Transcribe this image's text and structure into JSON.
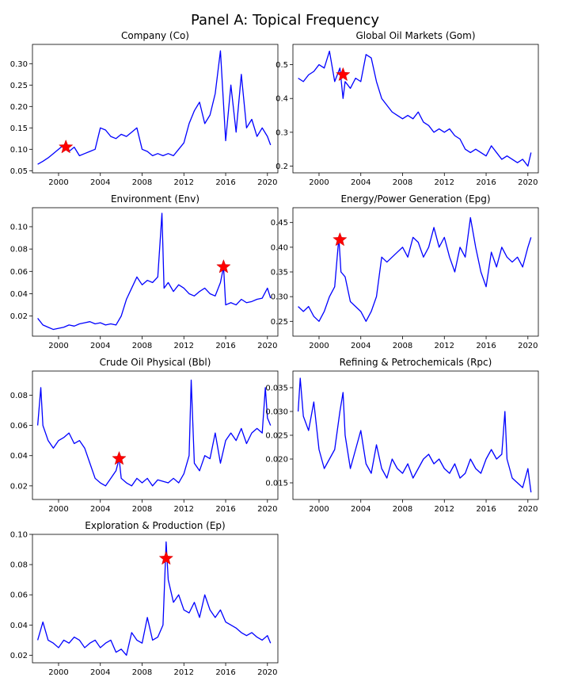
{
  "figure": {
    "title": "Panel A: Topical Frequency"
  },
  "style": {
    "line_color": "#0000ff",
    "marker_color": "#ff0000"
  },
  "chart_data": [
    {
      "type": "line",
      "title": "Company (Co)",
      "xlim": [
        1997.5,
        2021.0
      ],
      "ylim": [
        0.045,
        0.345
      ],
      "xticks": [
        2000,
        2004,
        2008,
        2012,
        2016,
        2020
      ],
      "yticks": [
        0.05,
        0.1,
        0.15,
        0.2,
        0.25,
        0.3
      ],
      "ytick_labels": [
        "0.05",
        "0.10",
        "0.15",
        "0.20",
        "0.25",
        "0.30"
      ],
      "series": [
        {
          "x": [
            1998.0,
            1998.5,
            1999.0,
            1999.5,
            2000.0,
            2000.5,
            2001.0,
            2001.5,
            2002.0,
            2002.5,
            2003.0,
            2003.5,
            2004.0,
            2004.5,
            2005.0,
            2005.5,
            2006.0,
            2006.5,
            2007.0,
            2007.5,
            2008.0,
            2008.5,
            2009.0,
            2009.5,
            2010.0,
            2010.5,
            2011.0,
            2011.5,
            2012.0,
            2012.5,
            2013.0,
            2013.5,
            2014.0,
            2014.5,
            2015.0,
            2015.5,
            2016.0,
            2016.5,
            2017.0,
            2017.5,
            2018.0,
            2018.5,
            2019.0,
            2019.5,
            2020.0,
            2020.3
          ],
          "y": [
            0.065,
            0.072,
            0.08,
            0.09,
            0.1,
            0.11,
            0.095,
            0.105,
            0.085,
            0.09,
            0.095,
            0.1,
            0.15,
            0.145,
            0.13,
            0.125,
            0.135,
            0.13,
            0.14,
            0.15,
            0.1,
            0.095,
            0.085,
            0.09,
            0.085,
            0.09,
            0.085,
            0.1,
            0.115,
            0.16,
            0.19,
            0.21,
            0.16,
            0.18,
            0.23,
            0.33,
            0.12,
            0.25,
            0.14,
            0.275,
            0.15,
            0.17,
            0.13,
            0.15,
            0.13,
            0.11
          ]
        }
      ],
      "markers": [
        {
          "x": 2000.7,
          "y": 0.105
        }
      ]
    },
    {
      "type": "line",
      "title": "Global Oil Markets (Gom)",
      "xlim": [
        1997.5,
        2021.0
      ],
      "ylim": [
        0.18,
        0.56
      ],
      "xticks": [
        2000,
        2004,
        2008,
        2012,
        2016,
        2020
      ],
      "yticks": [
        0.2,
        0.3,
        0.4,
        0.5
      ],
      "ytick_labels": [
        "0.2",
        "0.3",
        "0.4",
        "0.5"
      ],
      "series": [
        {
          "x": [
            1998.0,
            1998.5,
            1999.0,
            1999.5,
            2000.0,
            2000.5,
            2001.0,
            2001.5,
            2002.0,
            2002.3,
            2002.5,
            2003.0,
            2003.5,
            2004.0,
            2004.5,
            2005.0,
            2005.5,
            2006.0,
            2006.5,
            2007.0,
            2007.5,
            2008.0,
            2008.5,
            2009.0,
            2009.5,
            2010.0,
            2010.5,
            2011.0,
            2011.5,
            2012.0,
            2012.5,
            2013.0,
            2013.5,
            2014.0,
            2014.5,
            2015.0,
            2015.5,
            2016.0,
            2016.5,
            2017.0,
            2017.5,
            2018.0,
            2018.5,
            2019.0,
            2019.5,
            2020.0,
            2020.3
          ],
          "y": [
            0.46,
            0.45,
            0.47,
            0.48,
            0.5,
            0.49,
            0.54,
            0.45,
            0.49,
            0.4,
            0.45,
            0.43,
            0.46,
            0.45,
            0.53,
            0.52,
            0.45,
            0.4,
            0.38,
            0.36,
            0.35,
            0.34,
            0.35,
            0.34,
            0.36,
            0.33,
            0.32,
            0.3,
            0.31,
            0.3,
            0.31,
            0.29,
            0.28,
            0.25,
            0.24,
            0.25,
            0.24,
            0.23,
            0.26,
            0.24,
            0.22,
            0.23,
            0.22,
            0.21,
            0.22,
            0.2,
            0.24
          ]
        }
      ],
      "markers": [
        {
          "x": 2002.3,
          "y": 0.47
        }
      ]
    },
    {
      "type": "line",
      "title": "Environment (Env)",
      "xlim": [
        1997.5,
        2021.0
      ],
      "ylim": [
        0.002,
        0.117
      ],
      "xticks": [
        2000,
        2004,
        2008,
        2012,
        2016,
        2020
      ],
      "yticks": [
        0.02,
        0.04,
        0.06,
        0.08,
        0.1
      ],
      "ytick_labels": [
        "0.02",
        "0.04",
        "0.06",
        "0.08",
        "0.10"
      ],
      "series": [
        {
          "x": [
            1998.0,
            1998.5,
            1999.0,
            1999.5,
            2000.0,
            2000.5,
            2001.0,
            2001.5,
            2002.0,
            2002.5,
            2003.0,
            2003.5,
            2004.0,
            2004.5,
            2005.0,
            2005.5,
            2006.0,
            2006.5,
            2007.0,
            2007.5,
            2008.0,
            2008.5,
            2009.0,
            2009.5,
            2009.9,
            2010.1,
            2010.5,
            2011.0,
            2011.5,
            2012.0,
            2012.5,
            2013.0,
            2013.5,
            2014.0,
            2014.5,
            2015.0,
            2015.5,
            2015.8,
            2016.0,
            2016.5,
            2017.0,
            2017.5,
            2018.0,
            2018.5,
            2019.0,
            2019.5,
            2020.0,
            2020.3
          ],
          "y": [
            0.018,
            0.012,
            0.01,
            0.008,
            0.009,
            0.01,
            0.012,
            0.011,
            0.013,
            0.014,
            0.015,
            0.013,
            0.014,
            0.012,
            0.013,
            0.012,
            0.02,
            0.035,
            0.045,
            0.055,
            0.048,
            0.052,
            0.05,
            0.055,
            0.112,
            0.045,
            0.05,
            0.042,
            0.048,
            0.045,
            0.04,
            0.038,
            0.042,
            0.045,
            0.04,
            0.038,
            0.05,
            0.064,
            0.03,
            0.032,
            0.03,
            0.035,
            0.032,
            0.033,
            0.035,
            0.036,
            0.045,
            0.036
          ]
        }
      ],
      "markers": [
        {
          "x": 2015.8,
          "y": 0.064
        }
      ]
    },
    {
      "type": "line",
      "title": "Energy/Power Generation (Epg)",
      "xlim": [
        1997.5,
        2021.0
      ],
      "ylim": [
        0.22,
        0.48
      ],
      "xticks": [
        2000,
        2004,
        2008,
        2012,
        2016,
        2020
      ],
      "yticks": [
        0.25,
        0.3,
        0.35,
        0.4,
        0.45
      ],
      "ytick_labels": [
        "0.25",
        "0.30",
        "0.35",
        "0.40",
        "0.45"
      ],
      "series": [
        {
          "x": [
            1998.0,
            1998.5,
            1999.0,
            1999.5,
            2000.0,
            2000.5,
            2001.0,
            2001.5,
            2001.9,
            2002.1,
            2002.5,
            2003.0,
            2003.5,
            2004.0,
            2004.5,
            2005.0,
            2005.5,
            2006.0,
            2006.5,
            2007.0,
            2007.5,
            2008.0,
            2008.5,
            2009.0,
            2009.5,
            2010.0,
            2010.5,
            2011.0,
            2011.5,
            2012.0,
            2012.5,
            2013.0,
            2013.5,
            2014.0,
            2014.5,
            2015.0,
            2015.5,
            2016.0,
            2016.5,
            2017.0,
            2017.5,
            2018.0,
            2018.5,
            2019.0,
            2019.5,
            2020.0,
            2020.3
          ],
          "y": [
            0.28,
            0.27,
            0.28,
            0.26,
            0.25,
            0.27,
            0.3,
            0.32,
            0.42,
            0.35,
            0.34,
            0.29,
            0.28,
            0.27,
            0.25,
            0.27,
            0.3,
            0.38,
            0.37,
            0.38,
            0.39,
            0.4,
            0.38,
            0.42,
            0.41,
            0.38,
            0.4,
            0.44,
            0.4,
            0.42,
            0.38,
            0.35,
            0.4,
            0.38,
            0.46,
            0.4,
            0.35,
            0.32,
            0.39,
            0.36,
            0.4,
            0.38,
            0.37,
            0.38,
            0.36,
            0.4,
            0.42
          ]
        }
      ],
      "markers": [
        {
          "x": 2002.0,
          "y": 0.415
        }
      ]
    },
    {
      "type": "line",
      "title": "Crude Oil Physical (Bbl)",
      "xlim": [
        1997.5,
        2021.0
      ],
      "ylim": [
        0.011,
        0.096
      ],
      "xticks": [
        2000,
        2004,
        2008,
        2012,
        2016,
        2020
      ],
      "yticks": [
        0.02,
        0.04,
        0.06,
        0.08
      ],
      "ytick_labels": [
        "0.02",
        "0.04",
        "0.06",
        "0.08"
      ],
      "series": [
        {
          "x": [
            1998.0,
            1998.3,
            1998.5,
            1999.0,
            1999.5,
            2000.0,
            2000.5,
            2001.0,
            2001.5,
            2002.0,
            2002.5,
            2003.0,
            2003.5,
            2004.0,
            2004.5,
            2005.0,
            2005.5,
            2005.8,
            2006.0,
            2006.5,
            2007.0,
            2007.5,
            2008.0,
            2008.5,
            2009.0,
            2009.5,
            2010.0,
            2010.5,
            2011.0,
            2011.5,
            2012.0,
            2012.5,
            2012.7,
            2013.0,
            2013.5,
            2014.0,
            2014.5,
            2015.0,
            2015.5,
            2016.0,
            2016.5,
            2017.0,
            2017.5,
            2018.0,
            2018.5,
            2019.0,
            2019.5,
            2019.8,
            2020.0,
            2020.3
          ],
          "y": [
            0.06,
            0.085,
            0.06,
            0.05,
            0.045,
            0.05,
            0.052,
            0.055,
            0.048,
            0.05,
            0.045,
            0.035,
            0.025,
            0.022,
            0.02,
            0.025,
            0.03,
            0.038,
            0.025,
            0.022,
            0.02,
            0.025,
            0.022,
            0.025,
            0.02,
            0.024,
            0.023,
            0.022,
            0.025,
            0.022,
            0.028,
            0.04,
            0.09,
            0.035,
            0.03,
            0.04,
            0.038,
            0.055,
            0.035,
            0.05,
            0.055,
            0.05,
            0.058,
            0.048,
            0.055,
            0.058,
            0.055,
            0.085,
            0.065,
            0.06
          ]
        }
      ],
      "markers": [
        {
          "x": 2005.8,
          "y": 0.038
        }
      ]
    },
    {
      "type": "line",
      "title": "Refining & Petrochemicals (Rpc)",
      "xlim": [
        1997.5,
        2021.0
      ],
      "ylim": [
        0.0115,
        0.0385
      ],
      "xticks": [
        2000,
        2004,
        2008,
        2012,
        2016,
        2020
      ],
      "yticks": [
        0.015,
        0.02,
        0.025,
        0.03,
        0.035
      ],
      "ytick_labels": [
        "0.015",
        "0.020",
        "0.025",
        "0.030",
        "0.035"
      ],
      "series": [
        {
          "x": [
            1998.0,
            1998.2,
            1998.5,
            1999.0,
            1999.5,
            2000.0,
            2000.5,
            2001.0,
            2001.5,
            2002.0,
            2002.3,
            2002.5,
            2003.0,
            2003.5,
            2004.0,
            2004.5,
            2005.0,
            2005.5,
            2006.0,
            2006.5,
            2007.0,
            2007.5,
            2008.0,
            2008.5,
            2009.0,
            2009.5,
            2010.0,
            2010.5,
            2011.0,
            2011.5,
            2012.0,
            2012.5,
            2013.0,
            2013.5,
            2014.0,
            2014.5,
            2015.0,
            2015.5,
            2016.0,
            2016.5,
            2017.0,
            2017.5,
            2017.8,
            2018.0,
            2018.5,
            2019.0,
            2019.5,
            2020.0,
            2020.3
          ],
          "y": [
            0.03,
            0.037,
            0.029,
            0.026,
            0.032,
            0.022,
            0.018,
            0.02,
            0.022,
            0.03,
            0.034,
            0.025,
            0.018,
            0.022,
            0.026,
            0.019,
            0.017,
            0.023,
            0.018,
            0.016,
            0.02,
            0.018,
            0.017,
            0.019,
            0.016,
            0.018,
            0.02,
            0.021,
            0.019,
            0.02,
            0.018,
            0.017,
            0.019,
            0.016,
            0.017,
            0.02,
            0.018,
            0.017,
            0.02,
            0.022,
            0.02,
            0.021,
            0.03,
            0.02,
            0.016,
            0.015,
            0.014,
            0.018,
            0.013
          ]
        }
      ],
      "markers": []
    },
    {
      "type": "line",
      "title": "Exploration & Production (Ep)",
      "xlim": [
        1997.5,
        2021.0
      ],
      "ylim": [
        0.015,
        0.1
      ],
      "xticks": [
        2000,
        2004,
        2008,
        2012,
        2016,
        2020
      ],
      "yticks": [
        0.02,
        0.04,
        0.06,
        0.08,
        0.1
      ],
      "ytick_labels": [
        "0.02",
        "0.04",
        "0.06",
        "0.08",
        "0.10"
      ],
      "series": [
        {
          "x": [
            1998.0,
            1998.5,
            1999.0,
            1999.5,
            2000.0,
            2000.5,
            2001.0,
            2001.5,
            2002.0,
            2002.5,
            2003.0,
            2003.5,
            2004.0,
            2004.5,
            2005.0,
            2005.5,
            2006.0,
            2006.5,
            2007.0,
            2007.5,
            2008.0,
            2008.5,
            2009.0,
            2009.5,
            2010.0,
            2010.3,
            2010.5,
            2011.0,
            2011.5,
            2012.0,
            2012.5,
            2013.0,
            2013.5,
            2014.0,
            2014.5,
            2015.0,
            2015.5,
            2016.0,
            2016.5,
            2017.0,
            2017.5,
            2018.0,
            2018.5,
            2019.0,
            2019.5,
            2020.0,
            2020.3
          ],
          "y": [
            0.03,
            0.042,
            0.03,
            0.028,
            0.025,
            0.03,
            0.028,
            0.032,
            0.03,
            0.025,
            0.028,
            0.03,
            0.025,
            0.028,
            0.03,
            0.022,
            0.024,
            0.02,
            0.035,
            0.03,
            0.028,
            0.045,
            0.03,
            0.032,
            0.04,
            0.095,
            0.07,
            0.055,
            0.06,
            0.05,
            0.048,
            0.055,
            0.045,
            0.06,
            0.05,
            0.045,
            0.05,
            0.042,
            0.04,
            0.038,
            0.035,
            0.033,
            0.035,
            0.032,
            0.03,
            0.033,
            0.028
          ]
        }
      ],
      "markers": [
        {
          "x": 2010.3,
          "y": 0.084
        }
      ]
    }
  ]
}
